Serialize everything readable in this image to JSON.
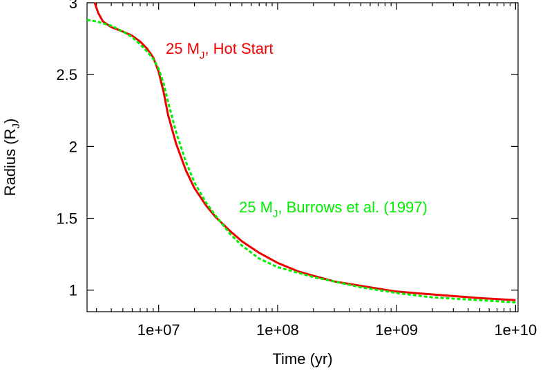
{
  "chart_data": {
    "type": "line",
    "xlabel": "Time (yr)",
    "ylabel": {
      "main": "Radius (R",
      "sub": "J",
      "close": ")"
    },
    "xscale": "log",
    "xlim": [
      2500000.0,
      10500000000.0
    ],
    "ylim": [
      0.85,
      3.0
    ],
    "xticks": [
      {
        "value": 10000000.0,
        "label": "1e+07"
      },
      {
        "value": 100000000.0,
        "label": "1e+08"
      },
      {
        "value": 1000000000.0,
        "label": "1e+09"
      },
      {
        "value": 10000000000.0,
        "label": "1e+10"
      }
    ],
    "yticks": [
      {
        "value": 1.0,
        "label": "1"
      },
      {
        "value": 1.5,
        "label": "1.5"
      },
      {
        "value": 2.0,
        "label": "2"
      },
      {
        "value": 2.5,
        "label": "2.5"
      },
      {
        "value": 3.0,
        "label": "3"
      }
    ],
    "grid": false,
    "series": [
      {
        "label_pre": "25 M",
        "label_sub": "J",
        "label_post": ", Hot Start",
        "color": "#ee0000",
        "dash": "solid",
        "x": [
          2900000.0,
          3100000.0,
          3400000.0,
          4000000.0,
          5000000.0,
          6000000.0,
          7000000.0,
          8000000.0,
          9000000.0,
          10000000.0,
          11000000.0,
          12000000.0,
          14000000.0,
          17000000.0,
          20000000.0,
          25000000.0,
          30000000.0,
          40000000.0,
          50000000.0,
          70000000.0,
          100000000.0,
          150000000.0,
          200000000.0,
          300000000.0,
          500000000.0,
          1000000000.0,
          2000000000.0,
          5000000000.0,
          10000000000.0
        ],
        "y": [
          3.0,
          2.93,
          2.87,
          2.83,
          2.8,
          2.77,
          2.73,
          2.68,
          2.62,
          2.52,
          2.38,
          2.22,
          2.02,
          1.83,
          1.71,
          1.59,
          1.51,
          1.41,
          1.34,
          1.26,
          1.19,
          1.13,
          1.1,
          1.06,
          1.03,
          0.99,
          0.97,
          0.945,
          0.93
        ]
      },
      {
        "label_pre": "25 M",
        "label_sub": "J",
        "label_post": ", Burrows et al. (1997)",
        "color": "#00ee00",
        "dash": "dashed",
        "x": [
          2500000.0,
          3000000.0,
          4000000.0,
          5000000.0,
          6000000.0,
          7000000.0,
          8000000.0,
          9000000.0,
          10000000.0,
          11000000.0,
          12000000.0,
          14000000.0,
          17000000.0,
          20000000.0,
          25000000.0,
          30000000.0,
          40000000.0,
          50000000.0,
          70000000.0,
          100000000.0,
          150000000.0,
          200000000.0,
          300000000.0,
          500000000.0,
          1000000000.0,
          2000000000.0,
          5000000000.0,
          10000000000.0
        ],
        "y": [
          2.88,
          2.87,
          2.84,
          2.8,
          2.76,
          2.71,
          2.66,
          2.61,
          2.54,
          2.44,
          2.31,
          2.1,
          1.89,
          1.75,
          1.61,
          1.52,
          1.39,
          1.31,
          1.22,
          1.16,
          1.12,
          1.09,
          1.06,
          1.02,
          0.98,
          0.95,
          0.93,
          0.915
        ]
      }
    ]
  }
}
